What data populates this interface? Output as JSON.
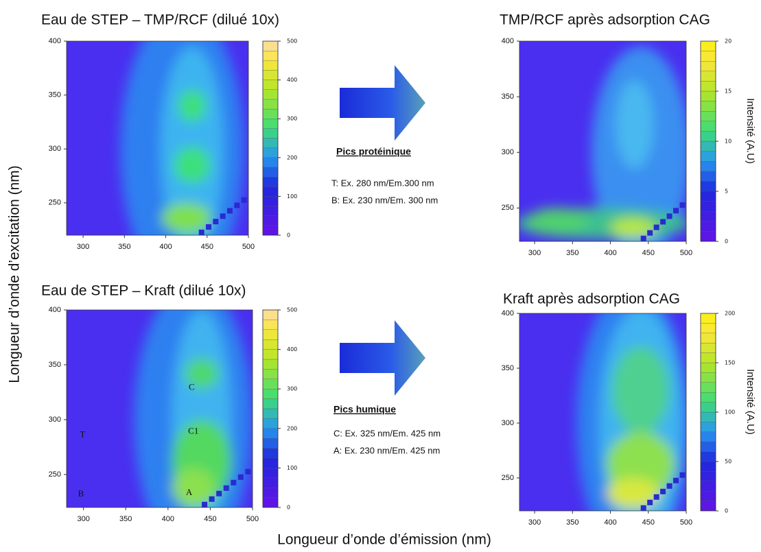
{
  "left_axis_label": "Longueur d’onde d’excitation (nm)",
  "bottom_axis_label": "Longueur d’onde d’émission (nm)",
  "protein_peaks": {
    "heading": "Pics protéinique",
    "lines": [
      "T: Ex. 280 nm/Em.300 nm",
      "B: Ex. 230 nm/Em. 300 nm"
    ]
  },
  "humic_peaks": {
    "heading": "Pics humique",
    "lines": [
      "C: Ex. 325 nm/Em. 425 nm",
      "A: Ex. 230 nm/Em. 425 nm"
    ]
  },
  "chart_data": [
    {
      "type": "contour",
      "title": "Eau de STEP – TMP/RCF (dilué 10x)",
      "xlim": [
        280,
        500
      ],
      "xticks": [
        300,
        350,
        400,
        450,
        500
      ],
      "ylim": [
        220,
        400
      ],
      "yticks": [
        250,
        300,
        350,
        400
      ],
      "colorbar_lim": [
        0,
        500
      ],
      "colorbar_ticks": [
        0,
        100,
        200,
        300,
        400,
        500
      ]
    },
    {
      "type": "contour",
      "title": "TMP/RCF  après adsorption CAG",
      "xlim": [
        280,
        500
      ],
      "xticks": [
        300,
        350,
        400,
        450,
        500
      ],
      "ylim": [
        220,
        400
      ],
      "yticks": [
        250,
        300,
        350,
        400
      ],
      "colorbar_lim": [
        0,
        20
      ],
      "colorbar_ticks": [
        0,
        5,
        10,
        15,
        20
      ],
      "colorbar_label": "Intensité (A.U)"
    },
    {
      "type": "contour",
      "title": "Eau de STEP – Kraft (dilué 10x)",
      "xlim": [
        280,
        500
      ],
      "xticks": [
        300,
        350,
        400,
        450,
        500
      ],
      "ylim": [
        220,
        400
      ],
      "yticks": [
        250,
        300,
        350,
        400
      ],
      "colorbar_lim": [
        0,
        500
      ],
      "colorbar_ticks": [
        0,
        100,
        200,
        300,
        400,
        500
      ],
      "annotations": [
        "C",
        "C1",
        "T",
        "B",
        "A"
      ]
    },
    {
      "type": "contour",
      "title": "Kraft après adsorption CAG",
      "xlim": [
        280,
        500
      ],
      "xticks": [
        300,
        350,
        400,
        450,
        500
      ],
      "ylim": [
        220,
        400
      ],
      "yticks": [
        250,
        300,
        350,
        400
      ],
      "colorbar_lim": [
        0,
        200
      ],
      "colorbar_ticks": [
        0,
        50,
        100,
        150,
        200
      ],
      "colorbar_label": "Intensité (A.U)"
    }
  ]
}
